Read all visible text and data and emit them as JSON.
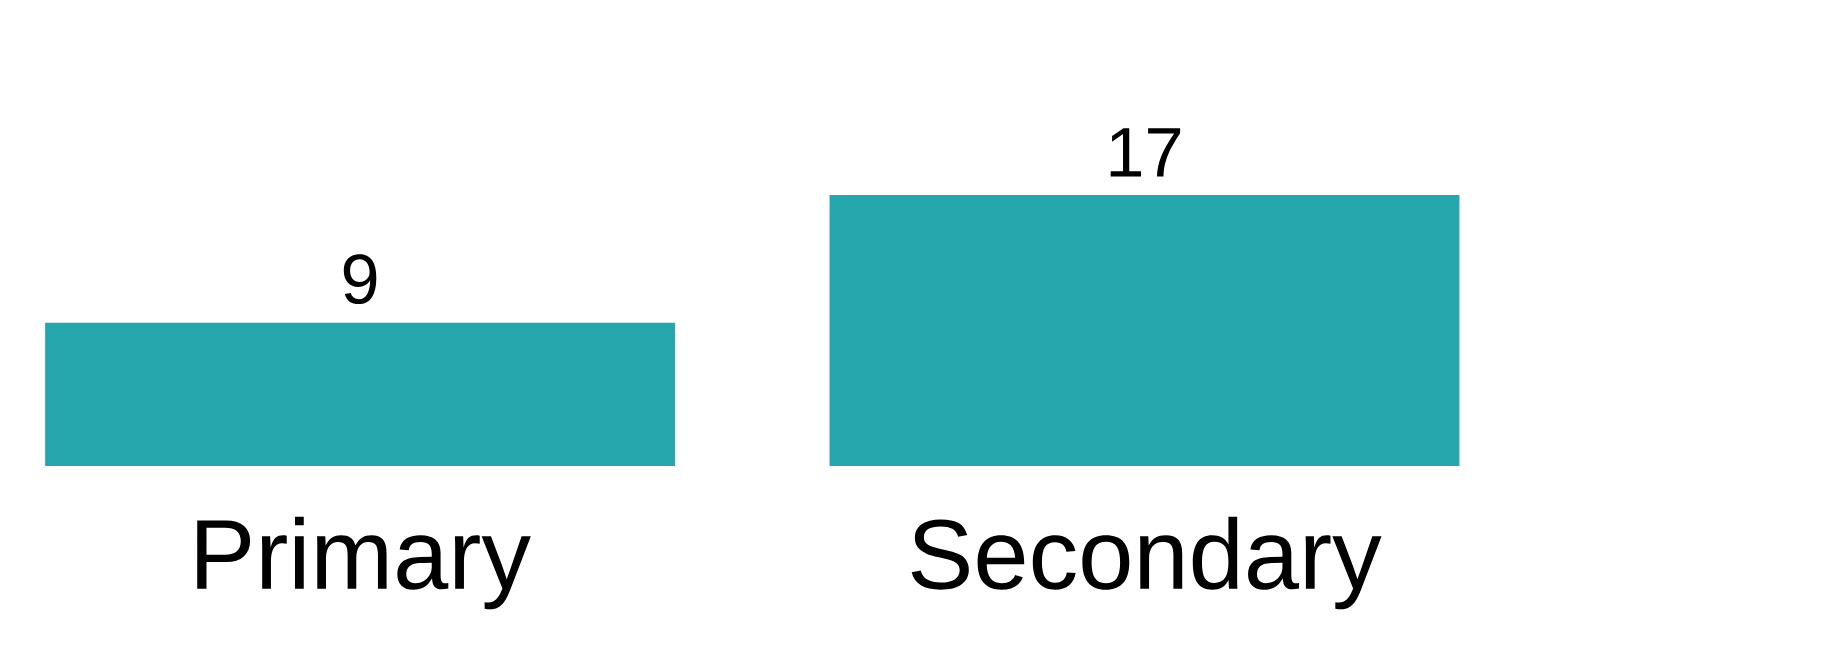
{
  "chart_data": {
    "type": "bar",
    "categories": [
      "Primary",
      "Secondary"
    ],
    "values": [
      9,
      17
    ],
    "color": "#26a7ad",
    "data_labels": true
  }
}
